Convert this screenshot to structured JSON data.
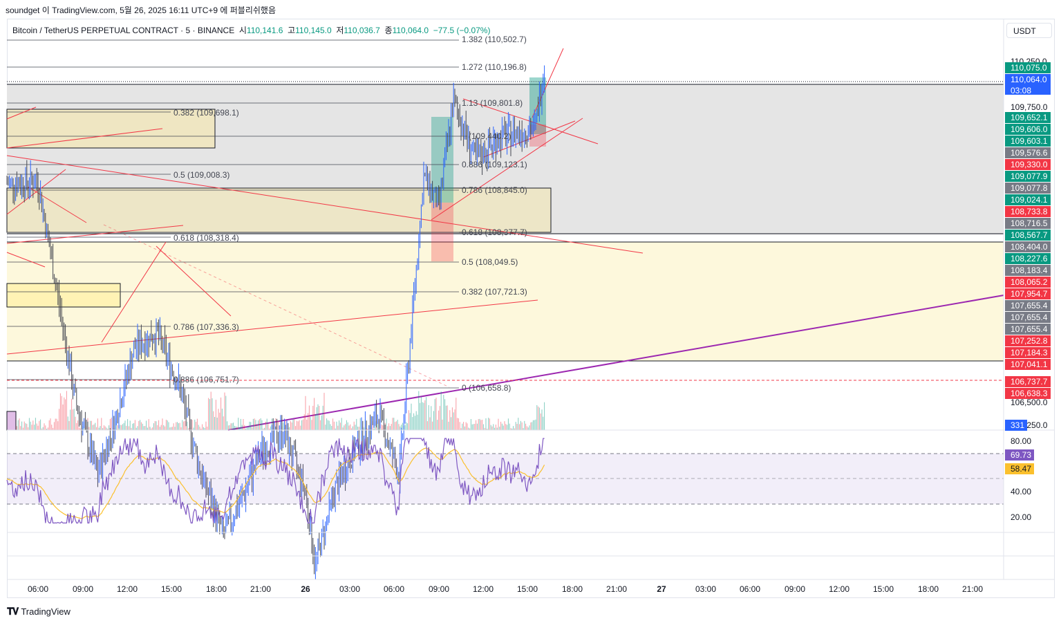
{
  "header": {
    "published": "soundget 이 TradingView.com, 5월 26, 2025 16:11 UTC+9 에 퍼블리쉬했음"
  },
  "symbol": {
    "name": "Bitcoin / TetherUS PERPETUAL CONTRACT · 5 · BINANCE",
    "open_label": "시",
    "open": "110,141.6",
    "high_label": "고",
    "high": "110,145.0",
    "low_label": "저",
    "low": "110,036.7",
    "close_label": "종",
    "close": "110,064.0",
    "change": "−77.5 (−0.07%)"
  },
  "currency_button": "USDT",
  "chart_data": {
    "type": "candlestick",
    "symbol": "BTCUSDT.P",
    "interval": "5",
    "y_axis_range": [
      106250,
      110250
    ],
    "y_ticks": [
      "110,250.0",
      "109,750.0",
      "106,500.0",
      "106,250.0"
    ],
    "x_tick_labels": [
      "06:00",
      "09:00",
      "12:00",
      "15:00",
      "18:00",
      "21:00",
      "26",
      "03:00",
      "06:00",
      "09:00",
      "12:00",
      "15:00",
      "18:00",
      "21:00",
      "27",
      "03:00",
      "06:00",
      "09:00",
      "12:00",
      "15:00",
      "18:00",
      "21:00"
    ],
    "price_path": [
      {
        "t": "04:00",
        "p": 109250
      },
      {
        "t": "06:00",
        "p": 109260
      },
      {
        "t": "07:30",
        "p": 108400
      },
      {
        "t": "08:30",
        "p": 107800
      },
      {
        "t": "10:00",
        "p": 107300
      },
      {
        "t": "11:00",
        "p": 107600
      },
      {
        "t": "12:30",
        "p": 108150
      },
      {
        "t": "14:00",
        "p": 108250
      },
      {
        "t": "15:30",
        "p": 107900
      },
      {
        "t": "17:00",
        "p": 107300
      },
      {
        "t": "18:30",
        "p": 106900
      },
      {
        "t": "20:00",
        "p": 107200
      },
      {
        "t": "21:00",
        "p": 107450
      },
      {
        "t": "22:30",
        "p": 107600
      },
      {
        "t": "00:00",
        "p": 107200
      },
      {
        "t": "00:40",
        "p": 106700
      },
      {
        "t": "02:00",
        "p": 107200
      },
      {
        "t": "03:30",
        "p": 107500
      },
      {
        "t": "05:00",
        "p": 107700
      },
      {
        "t": "06:20",
        "p": 107300
      },
      {
        "t": "07:00",
        "p": 108100
      },
      {
        "t": "08:00",
        "p": 109300
      },
      {
        "t": "09:00",
        "p": 109100
      },
      {
        "t": "10:00",
        "p": 109800
      },
      {
        "t": "11:30",
        "p": 109400
      },
      {
        "t": "13:00",
        "p": 109550
      },
      {
        "t": "14:30",
        "p": 109600
      },
      {
        "t": "15:30",
        "p": 109620
      },
      {
        "t": "16:10",
        "p": 110064
      }
    ],
    "fib_levels": [
      {
        "label": "1.382 (110,502.7)"
      },
      {
        "label": "1.272 (110,196.8)"
      },
      {
        "label": "1.13 (109,801.8)"
      },
      {
        "label": "(109,440.2)"
      },
      {
        "label": "0.886 (109,123.1)"
      },
      {
        "label": "0.786 (108,845.0)"
      },
      {
        "label": "0.618 (108,377.7)"
      },
      {
        "label": "0.5 (108,049.5)"
      },
      {
        "label": "0.382 (107,721.3)"
      },
      {
        "label": "0 (106,658.8)"
      },
      {
        "label": "0.382 (109,698.1)"
      },
      {
        "label": "0.5 (109,008.3)"
      },
      {
        "label": "0.618 (108,318.4)"
      },
      {
        "label": "0.786 (107,336.3)"
      },
      {
        "label": "0.886 (106,751.7)"
      }
    ],
    "price_labels": [
      {
        "text": "110,075.0",
        "color": "#089981"
      },
      {
        "text": "110,064.0",
        "color": "#2962ff",
        "sub": "03:08"
      },
      {
        "text": "109,652.1",
        "color": "#089981"
      },
      {
        "text": "109,606.0",
        "color": "#089981"
      },
      {
        "text": "109,603.1",
        "color": "#089981"
      },
      {
        "text": "109,576.6",
        "color": "#787b86"
      },
      {
        "text": "109,330.0",
        "color": "#f23645"
      },
      {
        "text": "109,077.9",
        "color": "#089981"
      },
      {
        "text": "109,077.8",
        "color": "#787b86"
      },
      {
        "text": "109,024.1",
        "color": "#089981"
      },
      {
        "text": "108,733.8",
        "color": "#f23645"
      },
      {
        "text": "108,716.5",
        "color": "#787b86"
      },
      {
        "text": "108,567.7",
        "color": "#089981"
      },
      {
        "text": "108,404.0",
        "color": "#787b86"
      },
      {
        "text": "108,227.6",
        "color": "#089981"
      },
      {
        "text": "108,183.4",
        "color": "#787b86"
      },
      {
        "text": "108,065.2",
        "color": "#f23645"
      },
      {
        "text": "107,954.7",
        "color": "#f23645"
      },
      {
        "text": "107,655.4",
        "color": "#787b86"
      },
      {
        "text": "107,655.4",
        "color": "#787b86"
      },
      {
        "text": "107,655.4",
        "color": "#787b86"
      },
      {
        "text": "107,252.8",
        "color": "#f23645"
      },
      {
        "text": "107,184.3",
        "color": "#f23645"
      },
      {
        "text": "107,041.1",
        "color": "#f23645"
      },
      {
        "text": "106,737.7",
        "color": "#f23645"
      },
      {
        "text": "106,638.3",
        "color": "#f23645"
      }
    ],
    "volume_label": "331",
    "rsi": {
      "value": "69.73",
      "ma_value": "58.47",
      "ticks": [
        "80.00",
        "40.00",
        "20.00"
      ],
      "upper_band": 70,
      "middle": 50,
      "lower_band": 30
    }
  },
  "colors": {
    "up": "#089981",
    "down": "#f23645",
    "candle_up": "#2962ff",
    "candle_down": "#434651",
    "trend_red": "#f23645",
    "trend_purple": "#9c27b0",
    "rsi_line": "#7e57c2",
    "rsi_ma": "#fbc02d",
    "last_price": "#2962ff"
  },
  "brand": "TradingView"
}
